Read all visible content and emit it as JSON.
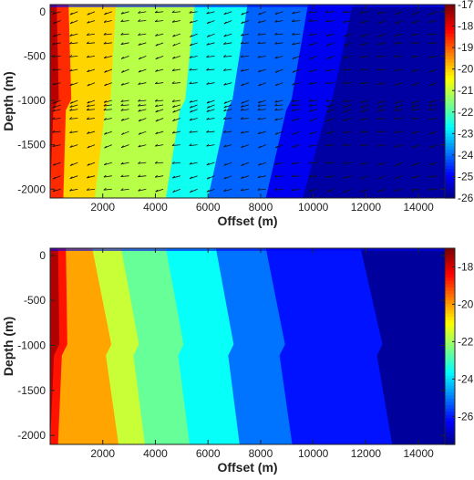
{
  "chart_data": [
    {
      "type": "heatmap",
      "variant": "filled-contour-with-quiver",
      "xlabel": "Offset (m)",
      "ylabel": "Depth (m)",
      "xlim": [
        0,
        15000
      ],
      "ylim": [
        -2100,
        80
      ],
      "xticks": [
        2000,
        4000,
        6000,
        8000,
        10000,
        12000,
        14000
      ],
      "yticks": [
        0,
        -500,
        -1000,
        -1500,
        -2000
      ],
      "colorbar": {
        "min": -26,
        "max": -17,
        "ticks": [
          -17,
          -18,
          -19,
          -20,
          -21,
          -22,
          -23,
          -24,
          -25,
          -26
        ]
      },
      "colormap": "jet",
      "contour_bands": [
        {
          "level": -17.5,
          "x_at_top": 250,
          "x_at_bottom": 0
        },
        {
          "level": -18.5,
          "x_at_top": 700,
          "x_at_bottom": 500
        },
        {
          "level": -20.0,
          "x_at_top": 2500,
          "x_at_bottom": 1700
        },
        {
          "level": -21.0,
          "x_at_top": 5500,
          "x_at_bottom": 4400
        },
        {
          "level": -22.5,
          "x_at_top": 7500,
          "x_at_bottom": 6000
        },
        {
          "level": -24.0,
          "x_at_top": 9800,
          "x_at_bottom": 8200
        },
        {
          "level": -25.0,
          "x_at_top": 11500,
          "x_at_bottom": 9600
        }
      ],
      "arrow_rows_depth": [
        0,
        -100,
        -250,
        -350,
        -500,
        -650,
        -800,
        -1000,
        -1050,
        -1100,
        -1200,
        -1350,
        -1500,
        -1700,
        -1850,
        -2000
      ]
    },
    {
      "type": "heatmap",
      "variant": "filled-contour",
      "xlabel": "Offset (m)",
      "ylabel": "Depth (m)",
      "xlim": [
        0,
        15000
      ],
      "ylim": [
        -2100,
        80
      ],
      "xticks": [
        2000,
        4000,
        6000,
        8000,
        10000,
        12000,
        14000
      ],
      "yticks": [
        0,
        -500,
        -1000,
        -1500,
        -2000
      ],
      "colorbar": {
        "min": -27.5,
        "max": -17,
        "ticks": [
          -18,
          -20,
          -22,
          -24,
          -26
        ]
      },
      "colormap": "jet",
      "contour_bands": [
        {
          "level": -17.5,
          "x_at_top": 300,
          "x_at_bottom": 0
        },
        {
          "level": -18.5,
          "x_at_top": 600,
          "x_at_bottom": 300
        },
        {
          "level": -20.0,
          "x_at_top": 1600,
          "x_at_bottom": 2600
        },
        {
          "level": -21.5,
          "x_at_top": 2700,
          "x_at_bottom": 3600
        },
        {
          "level": -22.5,
          "x_at_top": 4400,
          "x_at_bottom": 5300
        },
        {
          "level": -23.5,
          "x_at_top": 6300,
          "x_at_bottom": 7200
        },
        {
          "level": -25.0,
          "x_at_top": 8200,
          "x_at_bottom": 9200
        },
        {
          "level": -26.0,
          "x_at_top": 11800,
          "x_at_bottom": 13000
        }
      ]
    }
  ]
}
